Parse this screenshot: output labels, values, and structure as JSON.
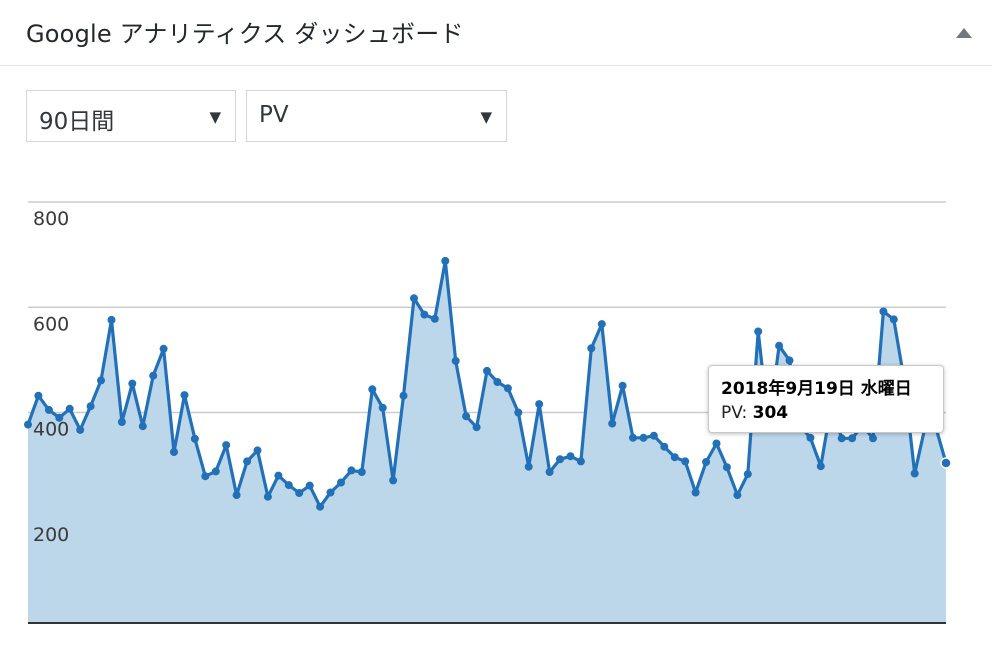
{
  "widget": {
    "title": "Google アナリティクス ダッシュボード"
  },
  "filters": {
    "period": {
      "selected": "90日間"
    },
    "metric": {
      "selected": "PV"
    }
  },
  "colors": {
    "line": "#2271b8",
    "area": "#bcd6ea",
    "grid": "#cccccc",
    "axis": "#333333"
  },
  "chart_data": {
    "type": "area",
    "series": [
      {
        "values": [
          377,
          432,
          405,
          390,
          407,
          367,
          412,
          461,
          576,
          382,
          455,
          374,
          470,
          521,
          325,
          433,
          350,
          279,
          288,
          338,
          243,
          307,
          328,
          240,
          280,
          262,
          247,
          261,
          221,
          248,
          267,
          290,
          287,
          444,
          409,
          271,
          432,
          617,
          586,
          578,
          688,
          498,
          393,
          372,
          479,
          458,
          446,
          400,
          297,
          416,
          287,
          311,
          317,
          307,
          522,
          568,
          379,
          451,
          352,
          352,
          356,
          335,
          315,
          307,
          248,
          306,
          341,
          296,
          243,
          283,
          554,
          375,
          527,
          499,
          375,
          352,
          298,
          414,
          351,
          351,
          375,
          351,
          592,
          577,
          460,
          284,
          373,
          373,
          304
        ]
      }
    ],
    "ylim": [
      0,
      800
    ],
    "yticks": [
      200,
      400,
      600,
      800
    ],
    "grid": true,
    "legend": "none"
  },
  "tooltip": {
    "date": "2018年9月19日 水曜日",
    "metric_label": "PV:",
    "metric_value": "304"
  }
}
